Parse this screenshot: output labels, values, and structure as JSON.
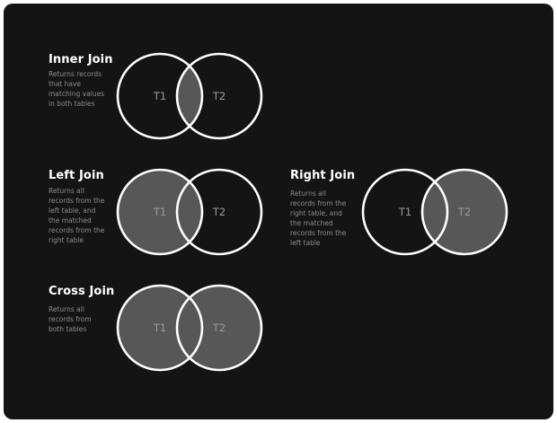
{
  "joins": {
    "inner": {
      "title": "Inner Join",
      "description": "Returns records\nthat have\nmatching values\nin both tables",
      "left_label": "T1",
      "right_label": "T2"
    },
    "left": {
      "title": "Left Join",
      "description": "Returns all\nrecords from the\nleft table, and\nthe matched\nrecords from the\nright table",
      "left_label": "T1",
      "right_label": "T2"
    },
    "right": {
      "title": "Right Join",
      "description": "Returns all\nrecords from the\nright table, and\nthe matched\nrecords from the\nleft table",
      "left_label": "T1",
      "right_label": "T2"
    },
    "cross": {
      "title": "Cross Join",
      "description": "Returns all\nrecords from\nboth tables",
      "left_label": "T1",
      "right_label": "T2"
    }
  },
  "colors": {
    "background": "#141414",
    "stroke": "#ffffff",
    "fill": "#575757",
    "label": "#9a9a9a"
  }
}
